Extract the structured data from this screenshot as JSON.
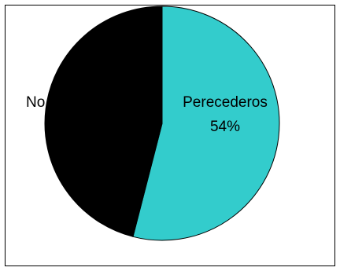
{
  "chart_data": {
    "type": "pie",
    "title": "",
    "start_angle_deg": 0,
    "direction": "clockwise",
    "slices": [
      {
        "label": "Perecederos",
        "value": 54,
        "value_label": "54%",
        "color": "#33CCCC"
      },
      {
        "label": "No",
        "value": 46,
        "value_label": "",
        "color": "#000000"
      }
    ],
    "legend": "none",
    "border_color": "#000000",
    "background_color": "#FFFFFF"
  }
}
